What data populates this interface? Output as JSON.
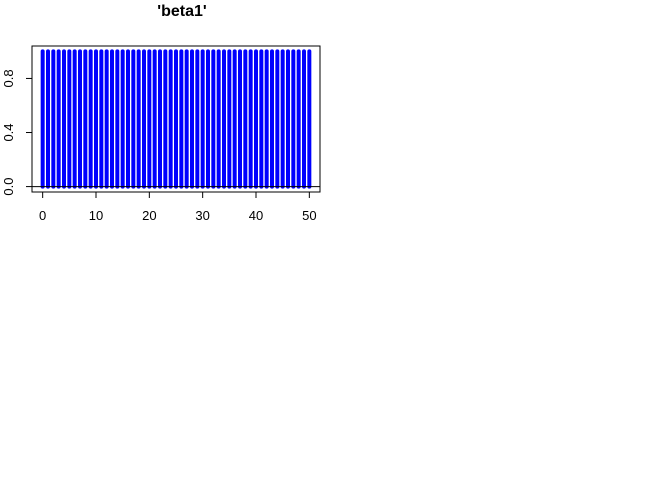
{
  "chart_data": {
    "type": "bar",
    "title": "'beta1'",
    "xlabel": "",
    "ylabel": "",
    "x_start": 0,
    "x_end": 50,
    "xlim": [
      -2,
      52
    ],
    "ylim": [
      -0.04,
      1.04
    ],
    "x_ticks": [
      0,
      10,
      20,
      30,
      40,
      50
    ],
    "y_ticks": [
      0.0,
      0.4,
      0.8
    ],
    "x_tick_labels": [
      "0",
      "10",
      "20",
      "30",
      "40",
      "50"
    ],
    "y_tick_labels": [
      "0.0",
      "0.4",
      "0.8"
    ],
    "values": [
      1,
      1,
      1,
      1,
      1,
      1,
      1,
      1,
      1,
      1,
      1,
      1,
      1,
      1,
      1,
      1,
      1,
      1,
      1,
      1,
      1,
      1,
      1,
      1,
      1,
      1,
      1,
      1,
      1,
      1,
      1,
      1,
      1,
      1,
      1,
      1,
      1,
      1,
      1,
      1,
      1,
      1,
      1,
      1,
      1,
      1,
      1,
      1,
      1,
      1,
      1
    ],
    "baseline": 0,
    "bar_color": "#0000ff",
    "frame": true,
    "grid": false
  }
}
